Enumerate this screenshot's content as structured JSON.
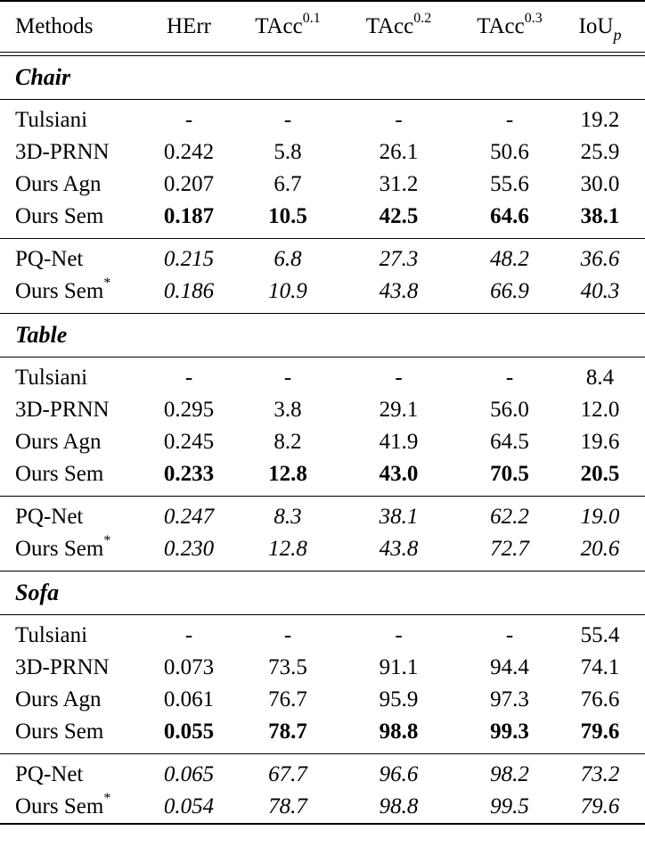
{
  "header": {
    "methods": "Methods",
    "herr": "HErr",
    "tacc1_base": "TAcc",
    "tacc1_sup": "0.1",
    "tacc2_base": "TAcc",
    "tacc2_sup": "0.2",
    "tacc3_base": "TAcc",
    "tacc3_sup": "0.3",
    "iou_base": "IoU",
    "iou_sub": "p"
  },
  "sections": [
    {
      "title": "Chair",
      "main_rows": [
        {
          "method": "Tulsiani",
          "herr": "-",
          "t1": "-",
          "t2": "-",
          "t3": "-",
          "iou": "19.2"
        },
        {
          "method": "3D-PRNN",
          "herr": "0.242",
          "t1": "5.8",
          "t2": "26.1",
          "t3": "50.6",
          "iou": "25.9"
        },
        {
          "method": "Ours Agn",
          "herr": "0.207",
          "t1": "6.7",
          "t2": "31.2",
          "t3": "55.6",
          "iou": "30.0"
        },
        {
          "method": "Ours Sem",
          "herr": "0.187",
          "t1": "10.5",
          "t2": "42.5",
          "t3": "64.6",
          "iou": "38.1"
        }
      ],
      "extra_rows": [
        {
          "method": "PQ-Net",
          "herr": "0.215",
          "t1": "6.8",
          "t2": "27.3",
          "t3": "48.2",
          "iou": "36.6"
        },
        {
          "method": "Ours Sem",
          "method_sup": "*",
          "herr": "0.186",
          "t1": "10.9",
          "t2": "43.8",
          "t3": "66.9",
          "iou": "40.3"
        }
      ]
    },
    {
      "title": "Table",
      "main_rows": [
        {
          "method": "Tulsiani",
          "herr": "-",
          "t1": "-",
          "t2": "-",
          "t3": "-",
          "iou": "8.4"
        },
        {
          "method": "3D-PRNN",
          "herr": "0.295",
          "t1": "3.8",
          "t2": "29.1",
          "t3": "56.0",
          "iou": "12.0"
        },
        {
          "method": "Ours Agn",
          "herr": "0.245",
          "t1": "8.2",
          "t2": "41.9",
          "t3": "64.5",
          "iou": "19.6"
        },
        {
          "method": "Ours Sem",
          "herr": "0.233",
          "t1": "12.8",
          "t2": "43.0",
          "t3": "70.5",
          "iou": "20.5"
        }
      ],
      "extra_rows": [
        {
          "method": "PQ-Net",
          "herr": "0.247",
          "t1": "8.3",
          "t2": "38.1",
          "t3": "62.2",
          "iou": "19.0"
        },
        {
          "method": "Ours Sem",
          "method_sup": "*",
          "herr": "0.230",
          "t1": "12.8",
          "t2": "43.8",
          "t3": "72.7",
          "iou": "20.6"
        }
      ]
    },
    {
      "title": "Sofa",
      "main_rows": [
        {
          "method": "Tulsiani",
          "herr": "-",
          "t1": "-",
          "t2": "-",
          "t3": "-",
          "iou": "55.4"
        },
        {
          "method": "3D-PRNN",
          "herr": "0.073",
          "t1": "73.5",
          "t2": "91.1",
          "t3": "94.4",
          "iou": "74.1"
        },
        {
          "method": "Ours Agn",
          "herr": "0.061",
          "t1": "76.7",
          "t2": "95.9",
          "t3": "97.3",
          "iou": "76.6"
        },
        {
          "method": "Ours Sem",
          "herr": "0.055",
          "t1": "78.7",
          "t2": "98.8",
          "t3": "99.3",
          "iou": "79.6"
        }
      ],
      "extra_rows": [
        {
          "method": "PQ-Net",
          "herr": "0.065",
          "t1": "67.7",
          "t2": "96.6",
          "t3": "98.2",
          "iou": "73.2"
        },
        {
          "method": "Ours Sem",
          "method_sup": "*",
          "herr": "0.054",
          "t1": "78.7",
          "t2": "98.8",
          "t3": "99.5",
          "iou": "79.6"
        }
      ]
    }
  ]
}
